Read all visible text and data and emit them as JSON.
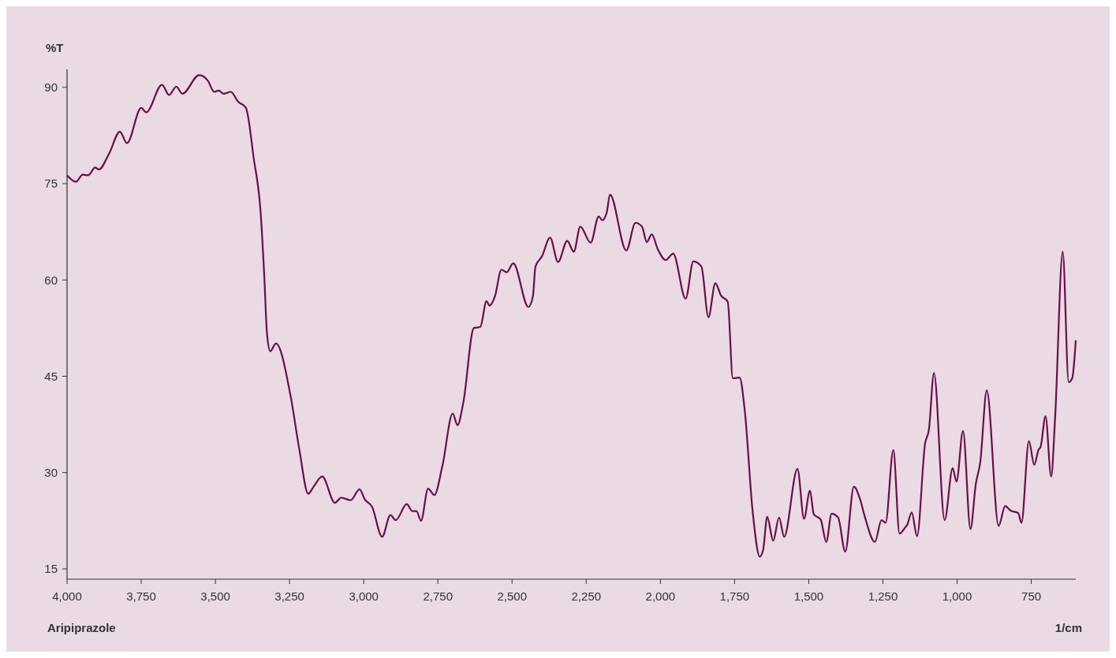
{
  "chart_data": {
    "type": "line",
    "xlabel": "1/cm",
    "ylabel": "%T",
    "annotations": [
      "Aripiprazole"
    ],
    "xlim": [
      4000,
      600
    ],
    "ylim": [
      13.4,
      92.8
    ],
    "xticks": [
      {
        "value": 4000,
        "label": "4,000"
      },
      {
        "value": 3750,
        "label": "3,750"
      },
      {
        "value": 3500,
        "label": "3,500"
      },
      {
        "value": 3250,
        "label": "3,250"
      },
      {
        "value": 3000,
        "label": "3,000"
      },
      {
        "value": 2750,
        "label": "2,750"
      },
      {
        "value": 2500,
        "label": "2,500"
      },
      {
        "value": 2250,
        "label": "2,250"
      },
      {
        "value": 2000,
        "label": "2,000"
      },
      {
        "value": 1750,
        "label": "1,750"
      },
      {
        "value": 1500,
        "label": "1,500"
      },
      {
        "value": 1250,
        "label": "1,250"
      },
      {
        "value": 1000,
        "label": "1,000"
      },
      750
    ],
    "yticks": [
      15,
      30,
      45,
      60,
      75,
      90
    ],
    "grid": false,
    "marker": "none",
    "line_style": "solid",
    "series": [
      {
        "color": "#6b0d4a",
        "x": [
          4000,
          3970,
          3947,
          3929,
          3905,
          3893,
          3857,
          3822,
          3798,
          3750,
          3733,
          3680,
          3656,
          3632,
          3611,
          3555,
          3525,
          3504,
          3489,
          3472,
          3448,
          3424,
          3397,
          3371,
          3347,
          3335,
          3326,
          3315,
          3296,
          3246,
          3217,
          3187,
          3169,
          3140,
          3097,
          3076,
          3044,
          3014,
          2996,
          2972,
          2938,
          2910,
          2892,
          2855,
          2836,
          2822,
          2807,
          2783,
          2762,
          2735,
          2700,
          2684,
          2664,
          2629,
          2607,
          2586,
          2576,
          2558,
          2536,
          2518,
          2496,
          2445,
          2430,
          2421,
          2399,
          2372,
          2345,
          2314,
          2292,
          2270,
          2235,
          2208,
          2196,
          2181,
          2170,
          2115,
          2084,
          2062,
          2046,
          2029,
          2009,
          1982,
          1957,
          1915,
          1889,
          1862,
          1838,
          1815,
          1796,
          1773,
          1756,
          1733,
          1716,
          1689,
          1665,
          1654,
          1640,
          1620,
          1600,
          1583,
          1538,
          1516,
          1496,
          1483,
          1460,
          1441,
          1423,
          1401,
          1377,
          1348,
          1326,
          1312,
          1277,
          1255,
          1241,
          1215,
          1194,
          1176,
          1168,
          1153,
          1135,
          1108,
          1095,
          1078,
          1042,
          1015,
          1002,
          980,
          955,
          937,
          922,
          900,
          860,
          838,
          820,
          794,
          783,
          758,
          740,
          726,
          718,
          702,
          683,
          670,
          644,
          624,
          612,
          600
        ],
        "values": [
          76.3,
          75.3,
          76.4,
          76.3,
          77.5,
          77.2,
          79.8,
          83.1,
          81.3,
          86.8,
          86.1,
          90.4,
          88.8,
          90.1,
          89.0,
          91.9,
          91.0,
          89.3,
          89.5,
          89.0,
          89.3,
          87.8,
          86.8,
          79.0,
          70.2,
          60.4,
          51.6,
          48.9,
          50.1,
          41.8,
          33.6,
          26.7,
          27.8,
          29.4,
          25.3,
          26.1,
          25.7,
          27.4,
          25.8,
          24.7,
          20.0,
          23.4,
          22.6,
          25.1,
          24.0,
          24.0,
          22.5,
          27.5,
          26.5,
          31.0,
          39.2,
          37.4,
          41.0,
          52.5,
          52.7,
          56.7,
          56.0,
          57.4,
          61.6,
          61.2,
          62.6,
          55.8,
          57.4,
          62.1,
          63.7,
          66.6,
          62.8,
          66.1,
          64.4,
          68.3,
          65.8,
          69.9,
          69.3,
          70.5,
          73.3,
          64.6,
          68.9,
          68.3,
          65.9,
          67.1,
          64.8,
          63.1,
          64.1,
          57.1,
          62.9,
          62.1,
          54.2,
          59.5,
          57.6,
          56.6,
          44.7,
          44.8,
          39.8,
          23.9,
          16.9,
          17.9,
          23.1,
          19.4,
          23.0,
          20.0,
          30.6,
          22.8,
          27.2,
          23.5,
          22.7,
          19.2,
          23.6,
          23.0,
          17.7,
          27.8,
          25.7,
          23.3,
          19.2,
          22.6,
          22.2,
          33.5,
          20.5,
          21.4,
          21.9,
          23.8,
          20.1,
          34.5,
          36.7,
          45.5,
          22.6,
          30.7,
          28.6,
          36.5,
          21.2,
          28.2,
          31.6,
          42.8,
          21.7,
          24.8,
          24.1,
          23.7,
          22.2,
          34.9,
          31.2,
          33.5,
          34.1,
          38.8,
          29.4,
          38.2,
          64.4,
          44.1,
          44.7,
          50.6
        ]
      }
    ]
  }
}
